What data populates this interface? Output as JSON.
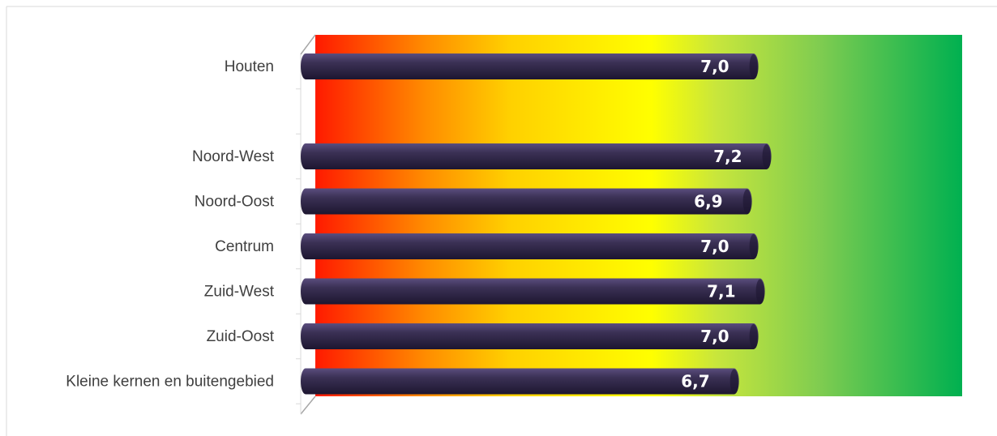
{
  "header": {
    "title_fragment": ""
  },
  "chart_data": {
    "type": "bar",
    "orientation": "horizontal",
    "style": "3d-cylinder",
    "categories": [
      "Houten",
      "",
      "Noord-West",
      "Noord-Oost",
      "Centrum",
      "Zuid-West",
      "Zuid-Oost",
      "Kleine kernen en buitengebied"
    ],
    "values": [
      7.0,
      null,
      7.2,
      6.9,
      7.0,
      7.1,
      7.0,
      6.7
    ],
    "value_labels": [
      "7,0",
      "",
      "7,2",
      "6,9",
      "7,0",
      "7,1",
      "7,0",
      "6,7"
    ],
    "title": "",
    "xlabel": "",
    "ylabel": "",
    "xlim": [
      0,
      10
    ],
    "grid": false,
    "legend": "none",
    "background": "gradient red → orange → yellow → green",
    "colors": {
      "bar": "#3b3155",
      "bar_light": "#5a4d7e",
      "bar_dark": "#1d1630",
      "value_text": "#ffffff",
      "gradient": [
        "#ff1a00",
        "#ff8c00",
        "#ffd000",
        "#ffff00",
        "#c8e63c",
        "#7fcc50",
        "#00b050"
      ]
    }
  }
}
